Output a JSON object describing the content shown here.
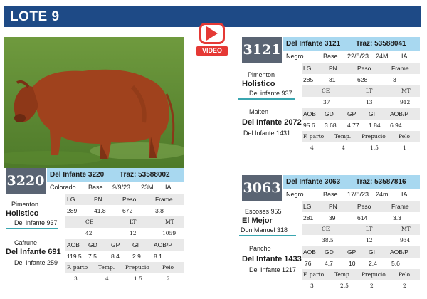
{
  "header": {
    "title": "LOTE 9"
  },
  "video": {
    "label": "VIDEO"
  },
  "photo": {
    "alt": "red bull standing on grass"
  },
  "lots": [
    {
      "number": "3220",
      "name": "Del Infante 3220",
      "traz": "Traz: 53588002",
      "color": "Colorado",
      "base": "Base",
      "date": "9/9/23",
      "age": "23M",
      "ia": "IA",
      "row1": {
        "headers": [
          "LG",
          "PN",
          "Peso",
          "Frame"
        ],
        "values": [
          "289",
          "41.8",
          "672",
          "3.8"
        ]
      },
      "row2": {
        "headers": [
          "CE",
          "LT",
          "MT"
        ],
        "values": [
          "42",
          "12",
          "1059"
        ]
      },
      "row3": {
        "headers": [
          "AOB",
          "GD",
          "GP",
          "GI",
          "AOB/P"
        ],
        "values": [
          "119.5",
          "7.5",
          "8.4",
          "2.9",
          "8.1"
        ]
      },
      "row4": {
        "headers": [
          "F. parto",
          "Temp.",
          "Prepucio",
          "Pelo"
        ],
        "values": [
          "3",
          "4",
          "1.5",
          "2"
        ]
      },
      "sire": {
        "top": "Pimenton",
        "name": "Holistico",
        "sub": "Del infante 937"
      },
      "dam": {
        "top": "Cafrune",
        "name": "Del Infante 691",
        "sub": "Del Infante 259"
      }
    },
    {
      "number": "3121",
      "name": "Del Infante 3121",
      "traz": "Traz: 53588041",
      "color": "Negro",
      "base": "Base",
      "date": "22/8/23",
      "age": "24M",
      "ia": "IA",
      "row1": {
        "headers": [
          "LG",
          "PN",
          "Peso",
          "Frame"
        ],
        "values": [
          "285",
          "31",
          "628",
          "3"
        ]
      },
      "row2": {
        "headers": [
          "CE",
          "LT",
          "MT"
        ],
        "values": [
          "37",
          "13",
          "912"
        ]
      },
      "row3": {
        "headers": [
          "AOB",
          "GD",
          "GP",
          "GI",
          "AOB/P"
        ],
        "values": [
          "95.6",
          "3.68",
          "4.77",
          "1.84",
          "6.94"
        ]
      },
      "row4": {
        "headers": [
          "F. parto",
          "Temp.",
          "Prepucio",
          "Pelo"
        ],
        "values": [
          "4",
          "4",
          "1.5",
          "1"
        ]
      },
      "sire": {
        "top": "Pimenton",
        "name": "Holistico",
        "sub": "Del infante 937"
      },
      "dam": {
        "top": "Maiten",
        "name": "Del Infante 2072",
        "sub": "Del Infante 1431"
      }
    },
    {
      "number": "3063",
      "name": "Del Infante 3063",
      "traz": "Traz: 53587816",
      "color": "Negro",
      "base": "Base",
      "date": "17/8/23",
      "age": "24m",
      "ia": "IA",
      "row1": {
        "headers": [
          "LG",
          "PN",
          "Peso",
          "Frame"
        ],
        "values": [
          "281",
          "39",
          "614",
          "3.3"
        ]
      },
      "row2": {
        "headers": [
          "CE",
          "LT",
          "MT"
        ],
        "values": [
          "38.5",
          "12",
          "934"
        ]
      },
      "row3": {
        "headers": [
          "AOB",
          "GD",
          "GP",
          "GI",
          "AOB/P"
        ],
        "values": [
          "76",
          "4.7",
          "10",
          "2.4",
          "5.6"
        ]
      },
      "row4": {
        "headers": [
          "F. parto",
          "Temp.",
          "Prepucio",
          "Pelo"
        ],
        "values": [
          "3",
          "2.5",
          "2",
          "2"
        ]
      },
      "sire": {
        "top": "Escoses 955",
        "name": "El Mejor",
        "sub": "Don Manuel 318"
      },
      "dam": {
        "top": "Pancho",
        "name": "Del Infante 1433",
        "sub": "Del Infante 1217"
      }
    }
  ]
}
